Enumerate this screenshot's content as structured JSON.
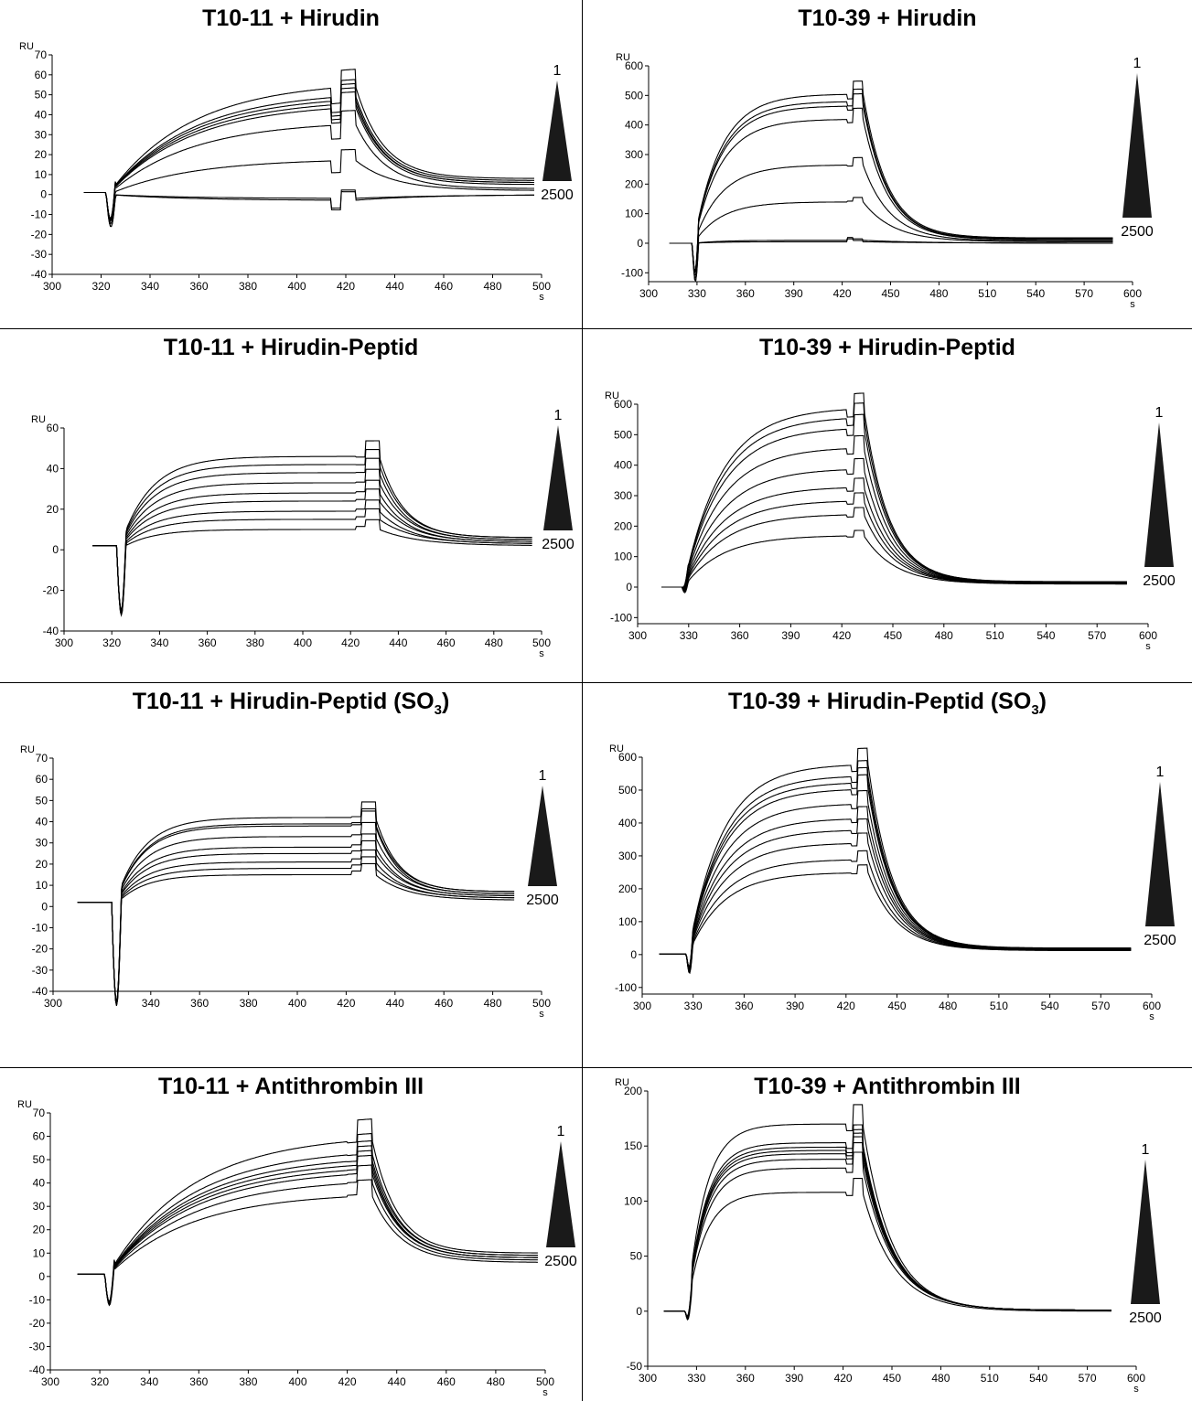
{
  "chart_data": [
    {
      "type": "line",
      "title": "T10-11 + Hirudin",
      "title_sub": "",
      "ylabel": "RU",
      "xunit": "s",
      "xlim": [
        300,
        500
      ],
      "ylim": [
        -40,
        70
      ],
      "xticks": [
        "300",
        "320",
        "340",
        "360",
        "380",
        "400",
        "420",
        "440",
        "460",
        "480",
        "500"
      ],
      "yticks": [
        "70",
        "60",
        "50",
        "40",
        "30",
        "20",
        "10",
        "0",
        "-10",
        "-20",
        "-30",
        "-40"
      ],
      "legend": {
        "top": "1",
        "bottom": "2500"
      },
      "curve": {
        "x_start": 313,
        "x_inject": 322,
        "x_stop": 424,
        "x_end": 497,
        "baseline": 1,
        "dip": -16,
        "dip_stop": -10,
        "assoc_k": 0.03
      },
      "series": [
        {
          "plateau": 57,
          "end_value": 8
        },
        {
          "plateau": 52,
          "end_value": 7
        },
        {
          "plateau": 50,
          "end_value": 6
        },
        {
          "plateau": 48,
          "end_value": 6
        },
        {
          "plateau": 46,
          "end_value": 5
        },
        {
          "plateau": 37,
          "end_value": 3
        },
        {
          "plateau": 18,
          "end_value": 2
        },
        {
          "plateau": -2,
          "end_value": 0
        },
        {
          "plateau": -3,
          "end_value": 0
        }
      ]
    },
    {
      "type": "line",
      "title": "T10-39 + Hirudin",
      "title_sub": "",
      "ylabel": "RU",
      "xunit": "s",
      "xlim": [
        300,
        600
      ],
      "ylim": [
        -130,
        600
      ],
      "xticks": [
        "300",
        "330",
        "360",
        "390",
        "420",
        "450",
        "480",
        "510",
        "540",
        "570",
        "600"
      ],
      "yticks": [
        "600",
        "500",
        "400",
        "300",
        "200",
        "100",
        "0",
        "-100"
      ],
      "legend": {
        "top": "1",
        "bottom": "2500"
      },
      "curve": {
        "x_start": 313,
        "x_inject": 327,
        "x_stop": 433,
        "x_end": 588,
        "baseline": 0,
        "dip": -130,
        "dip_stop": 20,
        "assoc_k": 0.06
      },
      "series": [
        {
          "plateau": 505,
          "end_value": 18
        },
        {
          "plateau": 480,
          "end_value": 15
        },
        {
          "plateau": 465,
          "end_value": 14
        },
        {
          "plateau": 420,
          "end_value": 12
        },
        {
          "plateau": 265,
          "end_value": 8
        },
        {
          "plateau": 140,
          "end_value": 5
        },
        {
          "plateau": 10,
          "end_value": 0
        },
        {
          "plateau": 5,
          "end_value": 0
        }
      ]
    },
    {
      "type": "line",
      "title": "T10-11 + Hirudin-Peptid",
      "title_sub": "",
      "ylabel": "RU",
      "xunit": "s",
      "xlim": [
        300,
        500
      ],
      "ylim": [
        -40,
        60
      ],
      "xticks": [
        "300",
        "320",
        "340",
        "360",
        "380",
        "400",
        "420",
        "440",
        "460",
        "480",
        "500"
      ],
      "yticks": [
        "60",
        "40",
        "20",
        "0",
        "-20",
        "-40"
      ],
      "legend": {
        "top": "1",
        "bottom": "2500"
      },
      "curve": {
        "x_start": 312,
        "x_inject": 322,
        "x_stop": 432,
        "x_end": 496,
        "baseline": 2,
        "dip": -33,
        "dip_stop": 4,
        "assoc_k": 0.08
      },
      "series": [
        {
          "plateau": 46,
          "end_value": 6
        },
        {
          "plateau": 42,
          "end_value": 6
        },
        {
          "plateau": 38,
          "end_value": 5
        },
        {
          "plateau": 33,
          "end_value": 5
        },
        {
          "plateau": 28,
          "end_value": 4
        },
        {
          "plateau": 24,
          "end_value": 4
        },
        {
          "plateau": 19,
          "end_value": 3
        },
        {
          "plateau": 15,
          "end_value": 3
        },
        {
          "plateau": 10,
          "end_value": 2
        }
      ]
    },
    {
      "type": "line",
      "title": "T10-39 + Hirudin-Peptid",
      "title_sub": "",
      "ylabel": "RU",
      "xunit": "s",
      "xlim": [
        300,
        600
      ],
      "ylim": [
        -120,
        600
      ],
      "xticks": [
        "300",
        "330",
        "360",
        "390",
        "420",
        "450",
        "480",
        "510",
        "540",
        "570",
        "600"
      ],
      "yticks": [
        "600",
        "500",
        "400",
        "300",
        "200",
        "100",
        "0",
        "-100"
      ],
      "legend": {
        "top": "1",
        "bottom": "2500"
      },
      "curve": {
        "x_start": 314,
        "x_inject": 326,
        "x_stop": 433,
        "x_end": 588,
        "baseline": 0,
        "dip": -30,
        "dip_stop": 10,
        "assoc_k": 0.045
      },
      "series": [
        {
          "plateau": 590,
          "end_value": 18
        },
        {
          "plateau": 560,
          "end_value": 17
        },
        {
          "plateau": 525,
          "end_value": 16
        },
        {
          "plateau": 460,
          "end_value": 15
        },
        {
          "plateau": 390,
          "end_value": 14
        },
        {
          "plateau": 330,
          "end_value": 13
        },
        {
          "plateau": 285,
          "end_value": 12
        },
        {
          "plateau": 240,
          "end_value": 11
        },
        {
          "plateau": 170,
          "end_value": 10
        }
      ]
    },
    {
      "type": "line",
      "title": "T10-11 + Hirudin-Peptid (SO",
      "title_sub": "3",
      "title_suffix": ")",
      "ylabel": "RU",
      "xunit": "s",
      "xlim": [
        300,
        500
      ],
      "ylim": [
        -40,
        70
      ],
      "xticks": [
        "300",
        "340",
        "360",
        "380",
        "400",
        "420",
        "440",
        "460",
        "480",
        "500"
      ],
      "yticks": [
        "70",
        "60",
        "50",
        "40",
        "30",
        "20",
        "10",
        "0",
        "-10",
        "-20",
        "-30",
        "-40"
      ],
      "legend": {
        "top": "1",
        "bottom": "2500"
      },
      "curve": {
        "x_start": 310,
        "x_inject": 324,
        "x_stop": 432,
        "x_end": 489,
        "baseline": 2,
        "dip": -48,
        "dip_stop": 5,
        "assoc_k": 0.09
      },
      "series": [
        {
          "plateau": 42,
          "end_value": 7
        },
        {
          "plateau": 39,
          "end_value": 7
        },
        {
          "plateau": 38,
          "end_value": 6
        },
        {
          "plateau": 33,
          "end_value": 6
        },
        {
          "plateau": 28,
          "end_value": 5
        },
        {
          "plateau": 25,
          "end_value": 5
        },
        {
          "plateau": 21,
          "end_value": 4
        },
        {
          "plateau": 18,
          "end_value": 4
        },
        {
          "plateau": 15,
          "end_value": 3
        }
      ]
    },
    {
      "type": "line",
      "title": "T10-39 + Hirudin-Peptid (SO",
      "title_sub": "3",
      "title_suffix": ")",
      "ylabel": "RU",
      "xunit": "s",
      "xlim": [
        300,
        600
      ],
      "ylim": [
        -120,
        600
      ],
      "xticks": [
        "300",
        "330",
        "360",
        "390",
        "420",
        "450",
        "480",
        "510",
        "540",
        "570",
        "600"
      ],
      "yticks": [
        "600",
        "500",
        "400",
        "300",
        "200",
        "100",
        "0",
        "-100"
      ],
      "legend": {
        "top": "1",
        "bottom": "2500"
      },
      "curve": {
        "x_start": 310,
        "x_inject": 326,
        "x_stop": 433,
        "x_end": 588,
        "baseline": 2,
        "dip": -75,
        "dip_stop": 20,
        "assoc_k": 0.05
      },
      "series": [
        {
          "plateau": 580,
          "end_value": 20
        },
        {
          "plateau": 545,
          "end_value": 19
        },
        {
          "plateau": 525,
          "end_value": 18
        },
        {
          "plateau": 505,
          "end_value": 18
        },
        {
          "plateau": 460,
          "end_value": 17
        },
        {
          "plateau": 415,
          "end_value": 16
        },
        {
          "plateau": 380,
          "end_value": 15
        },
        {
          "plateau": 340,
          "end_value": 14
        },
        {
          "plateau": 290,
          "end_value": 13
        },
        {
          "plateau": 250,
          "end_value": 12
        }
      ]
    },
    {
      "type": "line",
      "title": "T10-11 + Antithrombin III",
      "title_sub": "",
      "ylabel": "RU",
      "xunit": "s",
      "xlim": [
        300,
        500
      ],
      "ylim": [
        -40,
        70
      ],
      "xticks": [
        "300",
        "320",
        "340",
        "360",
        "380",
        "400",
        "420",
        "440",
        "460",
        "480",
        "500"
      ],
      "yticks": [
        "70",
        "60",
        "50",
        "40",
        "30",
        "20",
        "10",
        "0",
        "-10",
        "-20",
        "-30",
        "-40"
      ],
      "legend": {
        "top": "1",
        "bottom": "2500"
      },
      "curve": {
        "x_start": 311,
        "x_inject": 322,
        "x_stop": 430,
        "x_end": 497,
        "baseline": 1,
        "dip": -15,
        "dip_stop": 5,
        "assoc_k": 0.03
      },
      "series": [
        {
          "plateau": 61,
          "end_value": 10
        },
        {
          "plateau": 55,
          "end_value": 9
        },
        {
          "plateau": 52,
          "end_value": 9
        },
        {
          "plateau": 50,
          "end_value": 8
        },
        {
          "plateau": 48,
          "end_value": 8
        },
        {
          "plateau": 46,
          "end_value": 8
        },
        {
          "plateau": 42,
          "end_value": 7
        },
        {
          "plateau": 36,
          "end_value": 6
        }
      ]
    },
    {
      "type": "line",
      "title": "T10-39 + Antithrombin III",
      "title_sub": "",
      "ylabel": "RU",
      "xunit": "s",
      "xlim": [
        300,
        600
      ],
      "ylim": [
        -50,
        200
      ],
      "xticks": [
        "300",
        "330",
        "360",
        "390",
        "420",
        "450",
        "480",
        "510",
        "540",
        "570",
        "600"
      ],
      "yticks": [
        "200",
        "150",
        "100",
        "50",
        "0",
        "-50"
      ],
      "legend": {
        "top": "1",
        "bottom": "2500"
      },
      "curve": {
        "x_start": 310,
        "x_inject": 323,
        "x_stop": 432,
        "x_end": 585,
        "baseline": 0,
        "dip": -15,
        "dip_stop": 5,
        "assoc_k": 0.09
      },
      "series": [
        {
          "plateau": 170,
          "end_value": 1
        },
        {
          "plateau": 153,
          "end_value": 1
        },
        {
          "plateau": 149,
          "end_value": 1
        },
        {
          "plateau": 146,
          "end_value": 1
        },
        {
          "plateau": 143,
          "end_value": 1
        },
        {
          "plateau": 138,
          "end_value": 1
        },
        {
          "plateau": 130,
          "end_value": 1
        },
        {
          "plateau": 108,
          "end_value": 0
        }
      ]
    }
  ]
}
